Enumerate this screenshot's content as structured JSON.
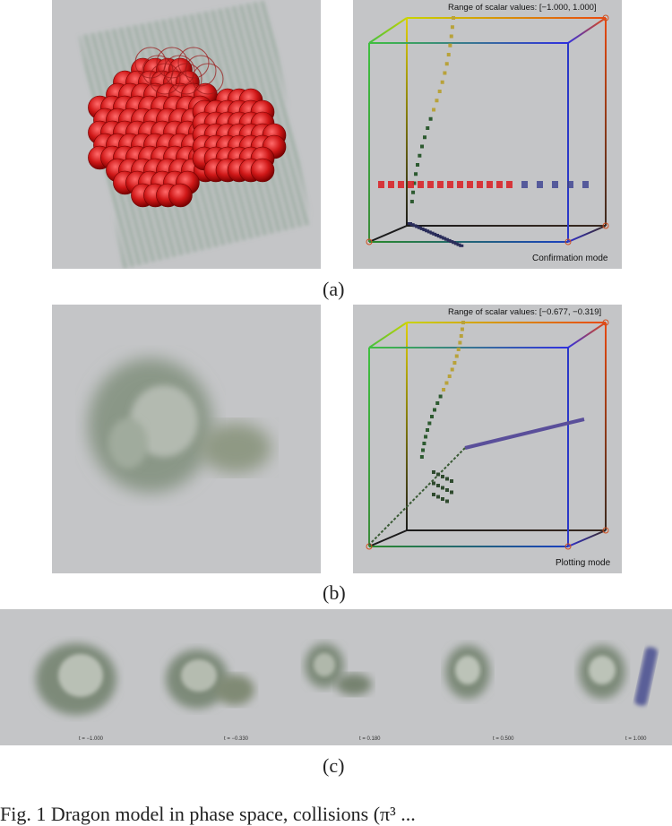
{
  "panel_a": {
    "range_text": "Range of scalar values: [−1.000,  1.000]",
    "mode_text": "Confirmation mode",
    "caption": "(a)"
  },
  "panel_b": {
    "range_text": "Range of scalar values: [−0.677, −0.319]",
    "mode_text": "Plotting mode",
    "caption": "(b)"
  },
  "panel_c": {
    "time_labels": [
      "t = −1.000",
      "t = −0.330",
      "t = 0.180",
      "t = 0.500",
      "t = 1.000"
    ],
    "caption": "(c)"
  },
  "figure_text": "Fig. 1   Dragon model in phase space, collisions (π³ ..."
}
